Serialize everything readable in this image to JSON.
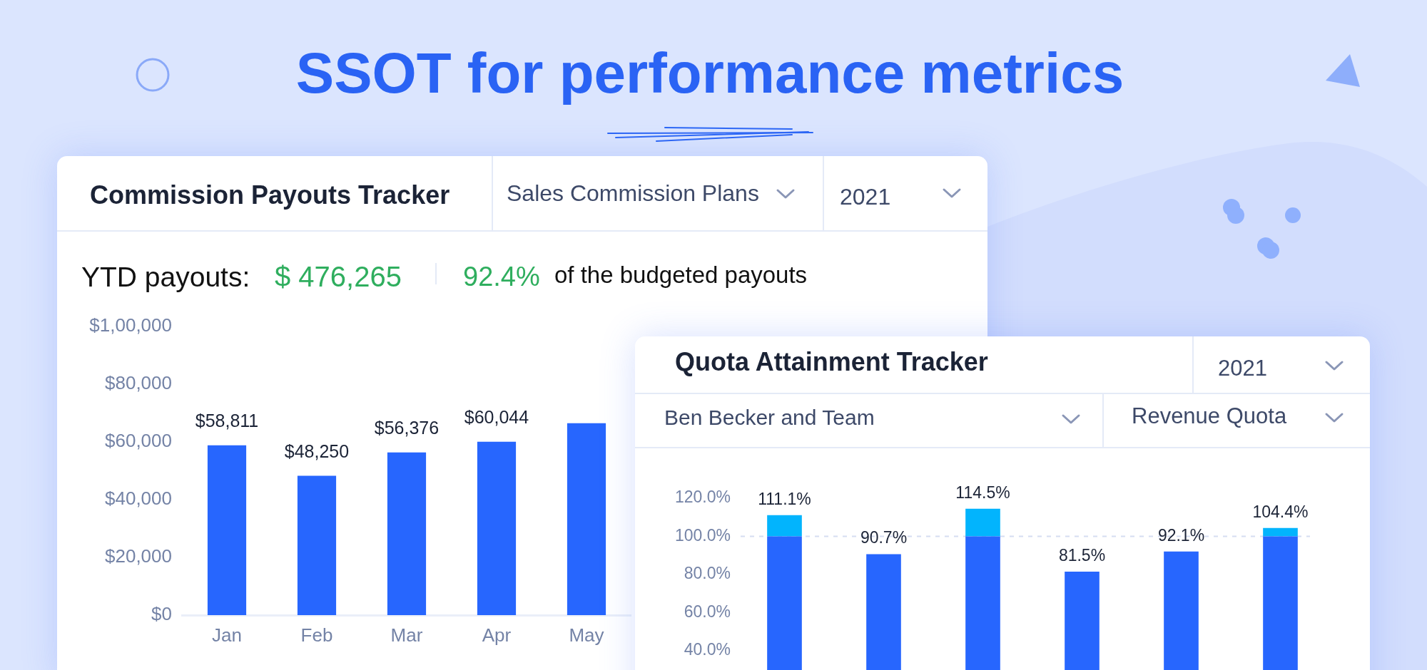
{
  "chart_data": [
    {
      "type": "other",
      "title": "SSOT for performance metrics"
    },
    {
      "type": "bar",
      "title": "Commission Payouts Tracker",
      "annotations": [
        "Sales Commission Plans",
        "2021",
        "YTD payouts:",
        "$ 476,265",
        "92.4%",
        "of the budgeted payouts"
      ],
      "categories": [
        "Jan",
        "Feb",
        "Mar",
        "Apr",
        "May"
      ],
      "values": [
        58811,
        48250,
        56376,
        60044,
        66500
      ],
      "color": "#2766fe",
      "value_labels": [
        "$58,811",
        "$48,250",
        "$56,376",
        "$60,044",
        null
      ],
      "ylim": [
        0,
        100000
      ],
      "yticks": [
        {
          "value": 0,
          "label": "$0"
        },
        {
          "value": 20000,
          "label": "$20,000"
        },
        {
          "value": 40000,
          "label": "$40,000"
        },
        {
          "value": 60000,
          "label": "$60,000"
        },
        {
          "value": 80000,
          "label": "$80,000"
        },
        {
          "value": 100000,
          "label": "$1,00,000"
        }
      ]
    },
    {
      "type": "bar",
      "title": "Quota Attainment Tracker",
      "annotations": [
        "2021",
        "Ben Becker and Team",
        "Revenue Quota"
      ],
      "categories": [
        null,
        null,
        null,
        null,
        null,
        null
      ],
      "stacked": true,
      "series": [
        {
          "color": "#2766fe",
          "values": [
            100,
            90.7,
            100,
            81.5,
            92.1,
            100
          ]
        },
        {
          "color": "#02b4fd",
          "values": [
            11.1,
            null,
            14.5,
            null,
            null,
            4.4
          ]
        }
      ],
      "totals": [
        "111.1%",
        "90.7%",
        "114.5%",
        "81.5%",
        "92.1%",
        "104.4%"
      ],
      "ylim": [
        0,
        120
      ],
      "yticks": [
        {
          "value": 40,
          "label": "40.0%"
        },
        {
          "value": 60,
          "label": "60.0%"
        },
        {
          "value": 80,
          "label": "80.0%"
        },
        {
          "value": 100,
          "label": "100.0%"
        },
        {
          "value": 120,
          "label": "120.0%"
        }
      ],
      "ref_lines": [
        {
          "axis": "y",
          "value": 100,
          "color": "#d5ddf1",
          "line_style": "dashed"
        }
      ],
      "tick_labels": "y"
    }
  ]
}
